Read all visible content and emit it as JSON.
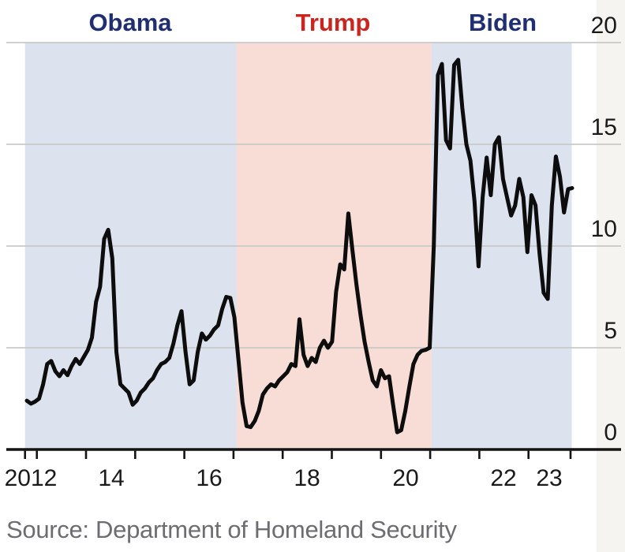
{
  "footer": {
    "source": "Source: Department of Homeland Security"
  },
  "chart_data": {
    "type": "line",
    "title": "",
    "xlabel": "",
    "ylabel": "",
    "ylim": [
      0,
      20
    ],
    "y_ticks": [
      20,
      15,
      10,
      5,
      0
    ],
    "x_tick_labels": [
      "2012",
      "14",
      "16",
      "18",
      "20",
      "22",
      "23"
    ],
    "x_range": [
      "2012-10",
      "2023-12"
    ],
    "grid": true,
    "legend": "none",
    "line_color": "#0d0d0d",
    "gridline_color": "#c9c9c7",
    "axis_color": "#141414",
    "regions": [
      {
        "label": "Obama",
        "from": "2012-10",
        "to": "2017-01",
        "band_color": "#dce3ee",
        "label_color": "#202e72"
      },
      {
        "label": "Trump",
        "from": "2017-01",
        "to": "2021-01",
        "band_color": "#f8ddd7",
        "label_color": "#c8261f"
      },
      {
        "label": "Biden",
        "from": "2021-01",
        "to": "2023-12",
        "band_color": "#dce3ee",
        "label_color": "#202e72"
      }
    ],
    "series": [
      {
        "name": "value",
        "start": "2012-10",
        "frequency": "monthly",
        "values": [
          2.4,
          2.25,
          2.35,
          2.5,
          3.2,
          4.2,
          4.35,
          3.85,
          3.6,
          3.9,
          3.65,
          4.1,
          4.45,
          4.2,
          4.55,
          4.9,
          5.5,
          7.25,
          8.0,
          10.35,
          10.8,
          9.4,
          4.8,
          3.2,
          3.0,
          2.8,
          2.2,
          2.4,
          2.8,
          3.0,
          3.3,
          3.5,
          3.9,
          4.2,
          4.3,
          4.5,
          5.2,
          6.1,
          6.8,
          4.8,
          3.2,
          3.4,
          4.8,
          5.7,
          5.4,
          5.6,
          5.9,
          6.1,
          6.9,
          7.5,
          7.45,
          6.5,
          4.4,
          2.3,
          1.15,
          1.1,
          1.4,
          1.9,
          2.7,
          3.0,
          3.2,
          3.1,
          3.4,
          3.6,
          3.8,
          4.2,
          4.1,
          6.4,
          4.65,
          4.1,
          4.5,
          4.3,
          5.0,
          5.35,
          5.0,
          5.3,
          7.75,
          9.1,
          8.85,
          11.6,
          9.8,
          8.1,
          6.6,
          5.3,
          4.3,
          3.4,
          3.1,
          3.9,
          3.5,
          3.6,
          2.2,
          0.85,
          0.95,
          1.9,
          3.1,
          4.2,
          4.65,
          4.85,
          4.9,
          5.0,
          10.0,
          18.4,
          18.95,
          15.2,
          14.8,
          18.9,
          19.15,
          16.8,
          15.0,
          14.2,
          12.2,
          9.0,
          12.4,
          14.35,
          12.5,
          15.0,
          15.35,
          13.3,
          12.4,
          11.5,
          12.0,
          13.3,
          12.4,
          9.7,
          12.5,
          12.0,
          9.6,
          7.7,
          7.4,
          12.0,
          14.4,
          13.4,
          11.65,
          12.8,
          12.85
        ]
      }
    ]
  }
}
